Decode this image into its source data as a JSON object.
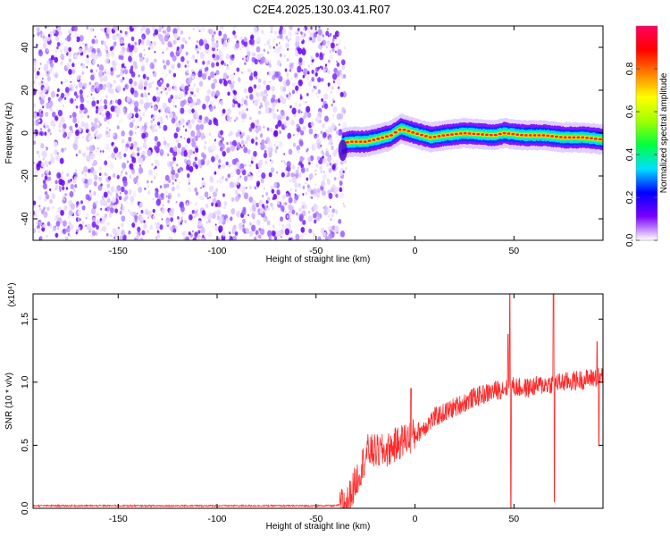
{
  "title": "C2E4.2025.130.03.41.R07",
  "chart_data": [
    {
      "type": "heatmap",
      "name": "spectrogram",
      "xlabel": "Height of straight line (km)",
      "ylabel": "Frequency (Hz)",
      "xlim": [
        -193,
        95
      ],
      "ylim": [
        -50,
        50
      ],
      "x_ticks": [
        -150,
        -100,
        -50,
        0,
        50
      ],
      "y_ticks": [
        -40,
        -20,
        0,
        20,
        40
      ],
      "noise_region_x": [
        -193,
        -36
      ],
      "signal": {
        "x_start": -37,
        "x_end": 95,
        "frequency_trace": [
          {
            "x": -37,
            "y": -5
          },
          {
            "x": -33,
            "y": -4
          },
          {
            "x": -25,
            "y": -4
          },
          {
            "x": -20,
            "y": -3
          },
          {
            "x": -12,
            "y": -1
          },
          {
            "x": -7,
            "y": 2
          },
          {
            "x": 0,
            "y": 0
          },
          {
            "x": 8,
            "y": -2
          },
          {
            "x": 15,
            "y": -1
          },
          {
            "x": 25,
            "y": 0
          },
          {
            "x": 40,
            "y": -1
          },
          {
            "x": 45,
            "y": 0
          },
          {
            "x": 55,
            "y": -1
          },
          {
            "x": 65,
            "y": -1
          },
          {
            "x": 75,
            "y": -2
          },
          {
            "x": 85,
            "y": -2
          },
          {
            "x": 95,
            "y": -3
          }
        ]
      },
      "colorbar": {
        "label": "Normalized spectral amplitude",
        "range": [
          0,
          1
        ],
        "ticks": [
          "0.0",
          "0.2",
          "0.4",
          "0.6",
          "0.8"
        ],
        "colors": [
          "#ffffff",
          "#7a00ff",
          "#0000ff",
          "#00e0ff",
          "#00ff40",
          "#a0ff00",
          "#ffff00",
          "#ff8000",
          "#ff0000",
          "#ff0060"
        ]
      }
    },
    {
      "type": "line",
      "name": "snr",
      "xlabel": "Height of straight line (km)",
      "ylabel": "SNR (10 * v/v)",
      "multiplier_label": "(x10⁴)",
      "xlim": [
        -193,
        95
      ],
      "ylim": [
        0,
        1.7
      ],
      "x_ticks": [
        -150,
        -100,
        -50,
        0,
        50
      ],
      "y_ticks": [
        "0.0",
        "0.5",
        "1.0",
        "1.5"
      ],
      "color": "#ff2a2a",
      "series_outline": [
        {
          "x": -193,
          "y": 0.02
        },
        {
          "x": -40,
          "y": 0.02
        },
        {
          "x": -34,
          "y": 0.05
        },
        {
          "x": -24,
          "y": 0.45
        },
        {
          "x": -15,
          "y": 0.45
        },
        {
          "x": -5,
          "y": 0.55
        },
        {
          "x": 0,
          "y": 0.58
        },
        {
          "x": 10,
          "y": 0.72
        },
        {
          "x": 20,
          "y": 0.8
        },
        {
          "x": 30,
          "y": 0.88
        },
        {
          "x": 40,
          "y": 0.93
        },
        {
          "x": 48,
          "y": 0.97
        },
        {
          "x": 55,
          "y": 0.95
        },
        {
          "x": 65,
          "y": 0.98
        },
        {
          "x": 75,
          "y": 1.0
        },
        {
          "x": 85,
          "y": 1.02
        },
        {
          "x": 95,
          "y": 1.05
        }
      ],
      "spikes": [
        {
          "x": -2,
          "y": 0.95
        },
        {
          "x": 47,
          "y": 1.38
        },
        {
          "x": 48,
          "y": 1.7
        },
        {
          "x": 48.5,
          "y": 0.0
        },
        {
          "x": 70,
          "y": 1.7
        },
        {
          "x": 70.5,
          "y": 0.05
        },
        {
          "x": 92,
          "y": 1.32
        },
        {
          "x": 93,
          "y": 0.5
        }
      ]
    }
  ]
}
